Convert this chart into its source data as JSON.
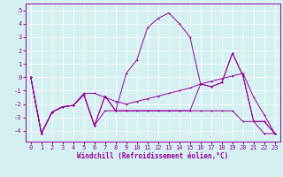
{
  "xlabel": "Windchill (Refroidissement éolien,°C)",
  "x": [
    0,
    1,
    2,
    3,
    4,
    5,
    6,
    7,
    8,
    9,
    10,
    11,
    12,
    13,
    14,
    15,
    16,
    17,
    18,
    19,
    20,
    21,
    22,
    23
  ],
  "line1": [
    0,
    -4.2,
    -2.6,
    -2.2,
    -2.1,
    -1.3,
    -3.6,
    -1.4,
    -2.5,
    -2.5,
    -2.5,
    -2.5,
    -2.5,
    -2.5,
    -2.5,
    -2.5,
    -0.5,
    -0.7,
    -0.4,
    1.8,
    0.1,
    -3.3,
    -3.3,
    -4.2
  ],
  "line2": [
    0,
    -4.2,
    -2.6,
    -2.2,
    -2.1,
    -1.3,
    -3.6,
    -1.4,
    -2.5,
    0.3,
    1.3,
    3.7,
    4.4,
    4.8,
    4.0,
    3.0,
    -0.5,
    -0.7,
    -0.4,
    1.8,
    0.1,
    -3.3,
    -3.3,
    -4.2
  ],
  "line3": [
    0,
    -4.2,
    -2.6,
    -2.2,
    -2.1,
    -1.2,
    -1.2,
    -1.5,
    -1.8,
    -2.0,
    -1.8,
    -1.6,
    -1.4,
    -1.2,
    -1.0,
    -0.8,
    -0.5,
    -0.3,
    -0.1,
    0.1,
    0.3,
    -1.5,
    -2.8,
    -4.2
  ],
  "line4": [
    0,
    -4.2,
    -2.6,
    -2.2,
    -2.1,
    -1.3,
    -3.6,
    -2.5,
    -2.5,
    -2.5,
    -2.5,
    -2.5,
    -2.5,
    -2.5,
    -2.5,
    -2.5,
    -2.5,
    -2.5,
    -2.5,
    -2.5,
    -3.3,
    -3.3,
    -4.2,
    -4.2
  ],
  "line_color": "#990099",
  "bg_color": "#d4f0f0",
  "grid_color": "#ffffff",
  "ylim": [
    -4.8,
    5.5
  ],
  "xlim": [
    -0.5,
    23.5
  ],
  "yticks": [
    -4,
    -3,
    -2,
    -1,
    0,
    1,
    2,
    3,
    4,
    5
  ],
  "xticks": [
    0,
    1,
    2,
    3,
    4,
    5,
    6,
    7,
    8,
    9,
    10,
    11,
    12,
    13,
    14,
    15,
    16,
    17,
    18,
    19,
    20,
    21,
    22,
    23
  ],
  "tick_fontsize": 5,
  "label_fontsize": 5.5,
  "marker_size": 2.0,
  "lw": 0.7
}
